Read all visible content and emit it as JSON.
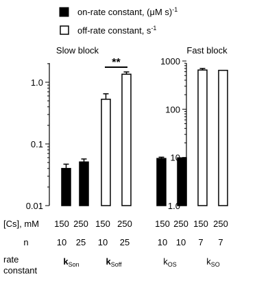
{
  "legend": {
    "on_label": "on-rate constant, (μM s)",
    "on_sup": "-1",
    "off_label": "off-rate constant, s",
    "off_sup": "-1",
    "on_color": "#000000",
    "off_color": "#ffffff"
  },
  "chart_data": [
    {
      "type": "bar",
      "title": "Slow block",
      "yscale": "log",
      "ylim": [
        0.01,
        2
      ],
      "ytick_labels": [
        "0.01",
        "0.1",
        "1.0"
      ],
      "ytick_values": [
        0.01,
        0.1,
        1.0
      ],
      "bars": [
        {
          "group": "k_Son",
          "cs_mM": "150",
          "n": "10",
          "value": 0.04,
          "err": 0.007,
          "fill": "on"
        },
        {
          "group": "k_Son",
          "cs_mM": "250",
          "n": "25",
          "value": 0.051,
          "err": 0.006,
          "fill": "on"
        },
        {
          "group": "k_Soff",
          "cs_mM": "150",
          "n": "10",
          "value": 0.53,
          "err": 0.12,
          "fill": "off"
        },
        {
          "group": "k_Soff",
          "cs_mM": "250",
          "n": "25",
          "value": 1.35,
          "err": 0.12,
          "fill": "off"
        }
      ],
      "annotation": "**",
      "groups": [
        {
          "main": "k",
          "sub": "Son"
        },
        {
          "main": "k",
          "sub": "Soff"
        }
      ]
    },
    {
      "type": "bar",
      "title": "Fast block",
      "yscale": "log",
      "ylim": [
        1,
        1000
      ],
      "ytick_labels": [
        "1.0",
        "10",
        "100",
        "1000"
      ],
      "ytick_values": [
        1,
        10,
        100,
        1000
      ],
      "bars": [
        {
          "group": "k_OS",
          "cs_mM": "150",
          "n": "10",
          "value": 9.5,
          "err": 0.6,
          "fill": "on"
        },
        {
          "group": "k_OS",
          "cs_mM": "250",
          "n": "10",
          "value": 9.8,
          "err": 0,
          "fill": "on"
        },
        {
          "group": "k_SO",
          "cs_mM": "150",
          "n": "7",
          "value": 650,
          "err": 50,
          "fill": "off"
        },
        {
          "group": "k_SO",
          "cs_mM": "250",
          "n": "7",
          "value": 640,
          "err": 0,
          "fill": "off"
        }
      ],
      "groups": [
        {
          "main": "k",
          "sub": "OS"
        },
        {
          "main": "k",
          "sub": "SO"
        }
      ]
    }
  ],
  "row_labels": {
    "cs": "[Cs], mM",
    "n": "n",
    "rate_line1": "rate",
    "rate_line2": "constant"
  }
}
